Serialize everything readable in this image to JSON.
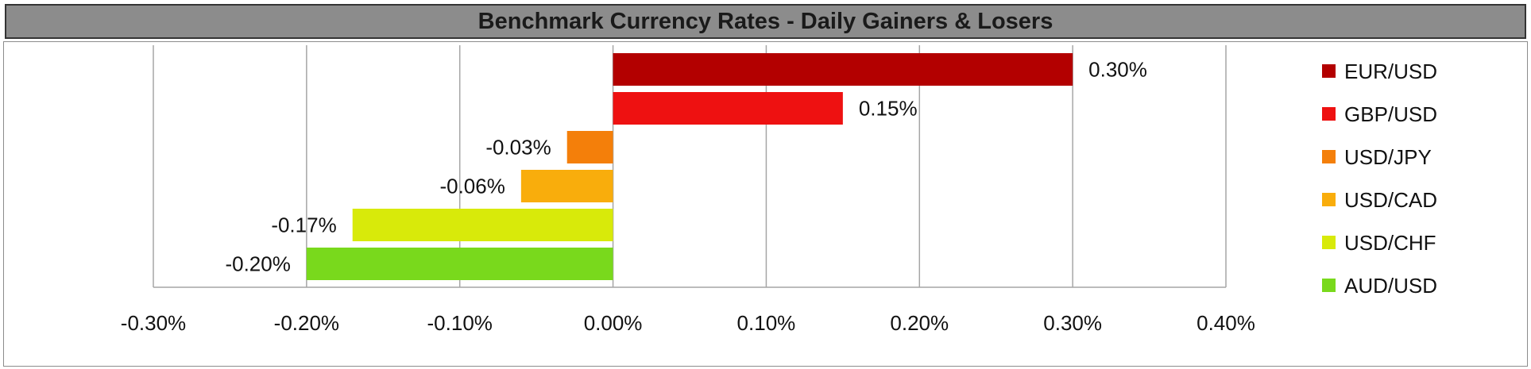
{
  "chart_data": {
    "type": "bar",
    "orientation": "horizontal",
    "title": "Benchmark Currency Rates - Daily Gainers & Losers",
    "xlabel": "",
    "ylabel": "",
    "xlim": [
      -0.3,
      0.4
    ],
    "x_ticks": [
      -0.3,
      -0.2,
      -0.1,
      0.0,
      0.1,
      0.2,
      0.3,
      0.4
    ],
    "x_tick_labels": [
      "-0.30%",
      "-0.20%",
      "-0.10%",
      "0.00%",
      "0.10%",
      "0.20%",
      "0.30%",
      "0.40%"
    ],
    "grid": "vertical major gridlines",
    "legend_position": "right",
    "series": [
      {
        "name": "EUR/USD",
        "value": 0.3,
        "label": "0.30%",
        "color": "#b30000"
      },
      {
        "name": "GBP/USD",
        "value": 0.15,
        "label": "0.15%",
        "color": "#ee1111"
      },
      {
        "name": "USD/JPY",
        "value": -0.03,
        "label": "-0.03%",
        "color": "#f47f0a"
      },
      {
        "name": "USD/CAD",
        "value": -0.06,
        "label": "-0.06%",
        "color": "#f9ad0c"
      },
      {
        "name": "USD/CHF",
        "value": -0.17,
        "label": "-0.17%",
        "color": "#d8ea0a"
      },
      {
        "name": "AUD/USD",
        "value": -0.2,
        "label": "-0.20%",
        "color": "#79d91c"
      }
    ]
  }
}
